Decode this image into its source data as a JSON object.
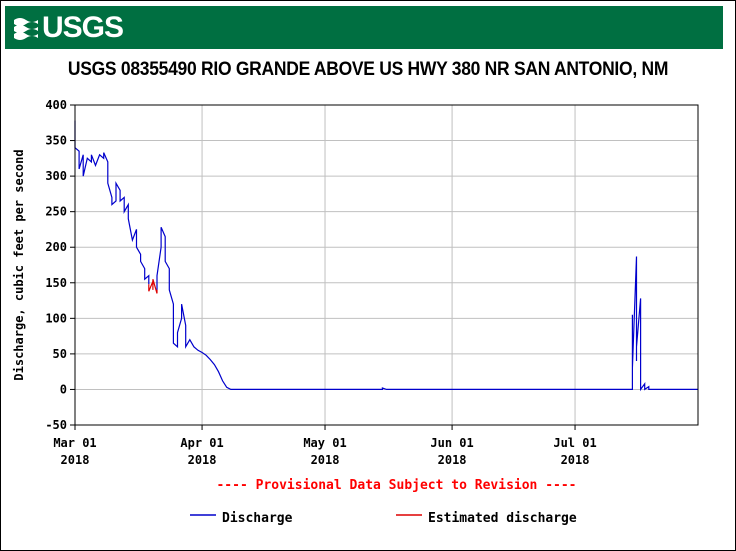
{
  "header": {
    "logo_text": "USGS",
    "title": "USGS 08355490 RIO GRANDE ABOVE US HWY 380 NR SAN ANTONIO, NM"
  },
  "colors": {
    "banner": "#006f41",
    "discharge": "#0000cc",
    "estimated": "#dd0000",
    "notice": "#ff0000",
    "grid": "#c0c0c0"
  },
  "chart_data": {
    "type": "line",
    "title": "USGS 08355490 RIO GRANDE ABOVE US HWY 380 NR SAN ANTONIO, NM",
    "ylabel": "Discharge, cubic feet per second",
    "xlabel": "",
    "ylim": [
      -50,
      400
    ],
    "xlim": [
      "2018-03-01",
      "2018-07-31"
    ],
    "grid": true,
    "yticks": [
      -50,
      0,
      50,
      100,
      150,
      200,
      250,
      300,
      350,
      400
    ],
    "xticks": [
      {
        "date": "2018-03-01",
        "line1": "Mar 01",
        "line2": "2018"
      },
      {
        "date": "2018-04-01",
        "line1": "Apr 01",
        "line2": "2018"
      },
      {
        "date": "2018-05-01",
        "line1": "May 01",
        "line2": "2018"
      },
      {
        "date": "2018-06-01",
        "line1": "Jun 01",
        "line2": "2018"
      },
      {
        "date": "2018-07-01",
        "line1": "Jul 01",
        "line2": "2018"
      }
    ],
    "notice": "---- Provisional Data Subject to Revision ----",
    "legend": [
      {
        "label": "Discharge",
        "color": "#0000cc"
      },
      {
        "label": "Estimated discharge",
        "color": "#dd0000"
      }
    ],
    "series": [
      {
        "name": "Discharge",
        "color": "#0000cc",
        "segments": [
          [
            [
              "2018-03-01",
              378
            ],
            [
              "2018-03-01",
              340
            ],
            [
              "2018-03-02",
              335
            ],
            [
              "2018-03-02",
              310
            ],
            [
              "2018-03-03",
              330
            ],
            [
              "2018-03-03",
              300
            ],
            [
              "2018-03-04",
              325
            ],
            [
              "2018-03-05",
              320
            ],
            [
              "2018-03-05",
              330
            ],
            [
              "2018-03-06",
              315
            ],
            [
              "2018-03-07",
              330
            ],
            [
              "2018-03-08",
              325
            ],
            [
              "2018-03-08",
              333
            ],
            [
              "2018-03-09",
              320
            ],
            [
              "2018-03-09",
              290
            ],
            [
              "2018-03-10",
              270
            ],
            [
              "2018-03-10",
              260
            ],
            [
              "2018-03-11",
              265
            ],
            [
              "2018-03-11",
              290
            ],
            [
              "2018-03-12",
              280
            ],
            [
              "2018-03-12",
              265
            ],
            [
              "2018-03-13",
              270
            ],
            [
              "2018-03-13",
              250
            ],
            [
              "2018-03-14",
              260
            ],
            [
              "2018-03-14",
              240
            ],
            [
              "2018-03-15",
              210
            ],
            [
              "2018-03-16",
              225
            ],
            [
              "2018-03-16",
              200
            ],
            [
              "2018-03-17",
              190
            ],
            [
              "2018-03-17",
              180
            ],
            [
              "2018-03-18",
              170
            ],
            [
              "2018-03-18",
              155
            ],
            [
              "2018-03-19",
              160
            ],
            [
              "2018-03-19",
              148
            ]
          ],
          [
            [
              "2018-03-21",
              140
            ],
            [
              "2018-03-21",
              160
            ],
            [
              "2018-03-22",
              200
            ],
            [
              "2018-03-22",
              228
            ],
            [
              "2018-03-23",
              215
            ],
            [
              "2018-03-23",
              180
            ],
            [
              "2018-03-24",
              170
            ],
            [
              "2018-03-24",
              140
            ],
            [
              "2018-03-25",
              120
            ],
            [
              "2018-03-25",
              65
            ],
            [
              "2018-03-26",
              60
            ],
            [
              "2018-03-26",
              80
            ],
            [
              "2018-03-27",
              100
            ],
            [
              "2018-03-27",
              120
            ],
            [
              "2018-03-28",
              90
            ],
            [
              "2018-03-28",
              60
            ],
            [
              "2018-03-29",
              70
            ],
            [
              "2018-03-30",
              60
            ],
            [
              "2018-03-31",
              55
            ],
            [
              "2018-04-01",
              52
            ],
            [
              "2018-04-02",
              48
            ],
            [
              "2018-04-03",
              42
            ],
            [
              "2018-04-04",
              35
            ],
            [
              "2018-04-05",
              25
            ],
            [
              "2018-04-06",
              12
            ],
            [
              "2018-04-07",
              3
            ],
            [
              "2018-04-08",
              0
            ],
            [
              "2018-05-15",
              0
            ],
            [
              "2018-05-15",
              2
            ],
            [
              "2018-05-16",
              0
            ],
            [
              "2018-07-15",
              0
            ],
            [
              "2018-07-15",
              105
            ],
            [
              "2018-07-15",
              30
            ],
            [
              "2018-07-16",
              187
            ],
            [
              "2018-07-16",
              40
            ],
            [
              "2018-07-16",
              160
            ],
            [
              "2018-07-16",
              60
            ],
            [
              "2018-07-17",
              128
            ],
            [
              "2018-07-17",
              10
            ],
            [
              "2018-07-17",
              0
            ],
            [
              "2018-07-18",
              8
            ],
            [
              "2018-07-18",
              0
            ],
            [
              "2018-07-19",
              4
            ],
            [
              "2018-07-19",
              0
            ],
            [
              "2018-07-31",
              0
            ]
          ]
        ]
      },
      {
        "name": "Estimated discharge",
        "color": "#dd0000",
        "segments": [
          [
            [
              "2018-03-19",
              148
            ],
            [
              "2018-03-19",
              138
            ],
            [
              "2018-03-20",
              152
            ],
            [
              "2018-03-20",
              140
            ],
            [
              "2018-03-20",
              155
            ],
            [
              "2018-03-21",
              135
            ],
            [
              "2018-03-21",
              140
            ]
          ]
        ]
      }
    ]
  }
}
